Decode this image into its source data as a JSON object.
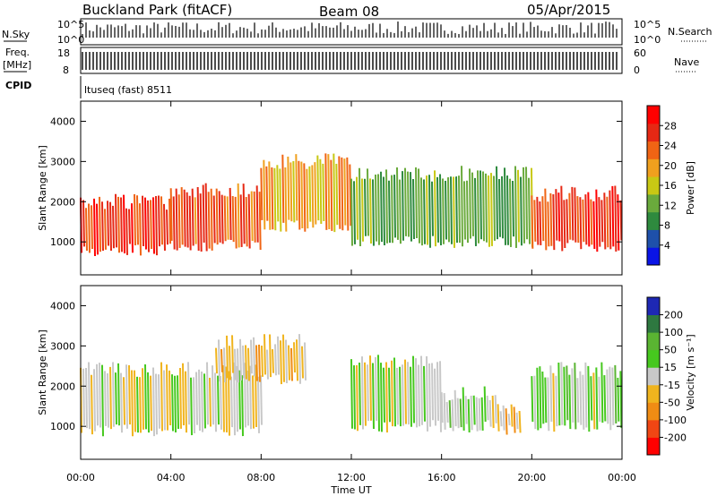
{
  "header": {
    "station": "Buckland Park (fitACF)",
    "beam": "Beam 08",
    "date": "05/Apr/2015"
  },
  "status": {
    "nsky_label": "N.Sky",
    "nsearch_label": "N.Search",
    "noise_ticks": [
      "10^5",
      "10^0"
    ],
    "freq_label": "Freq.",
    "freq_unit": "[MHz]",
    "freq_ticks": [
      "18",
      "8"
    ],
    "nave_label": "Nave",
    "nave_ticks": [
      "60",
      "0"
    ],
    "cpid_label": "CPID",
    "cpid_text": "ltuseq (fast) 8511"
  },
  "colors": {
    "power_scale": [
      "#0a14e6",
      "#1e50aa",
      "#2e8a3e",
      "#6aaa3c",
      "#c8c814",
      "#f0a01e",
      "#f06414",
      "#e62814",
      "#ff0000"
    ],
    "velocity_scale": [
      "#1e28b4",
      "#2e7840",
      "#5ab432",
      "#46c81e",
      "#c8c8c8",
      "#f0b41e",
      "#f08c14",
      "#f04614",
      "#ff0000"
    ]
  },
  "chart_data": [
    {
      "type": "heatmap",
      "name": "power",
      "ylabel": "Slant Range [km]",
      "ylim": [
        180,
        4500
      ],
      "yticks": [
        "1000",
        "2000",
        "3000",
        "4000"
      ],
      "colorbar_label": "Power [dB]",
      "colorbar_ticks": [
        "4",
        "8",
        "12",
        "16",
        "20",
        "24",
        "28"
      ],
      "colorbar_range": [
        0,
        32
      ],
      "regions": [
        {
          "t_start": "00:00",
          "t_end": "04:00",
          "range_km": [
            800,
            2000
          ],
          "value_db": 26
        },
        {
          "t_start": "04:00",
          "t_end": "08:00",
          "range_km": [
            900,
            2300
          ],
          "value_db": 24
        },
        {
          "t_start": "08:00",
          "t_end": "12:00",
          "range_km": [
            1400,
            3000
          ],
          "value_db": 20
        },
        {
          "t_start": "12:00",
          "t_end": "20:00",
          "range_km": [
            1000,
            2700
          ],
          "value_db": 12
        },
        {
          "t_start": "20:00",
          "t_end": "24:00",
          "range_km": [
            900,
            2200
          ],
          "value_db": 26
        }
      ]
    },
    {
      "type": "heatmap",
      "name": "velocity",
      "xlabel": "Time UT",
      "ylabel": "Slant Range [km]",
      "ylim": [
        180,
        4500
      ],
      "xticks": [
        "00:00",
        "04:00",
        "08:00",
        "12:00",
        "16:00",
        "20:00",
        "00:00"
      ],
      "yticks": [
        "1000",
        "2000",
        "3000",
        "4000"
      ],
      "colorbar_label": "Velocity [m s⁻¹]",
      "colorbar_ticks": [
        "200",
        "100",
        "50",
        "15",
        "-15",
        "-50",
        "-100",
        "-200"
      ],
      "regions": [
        {
          "t_start": "00:00",
          "t_end": "08:00",
          "range_km": [
            900,
            2400
          ],
          "value_ms": 0
        },
        {
          "t_start": "06:00",
          "t_end": "10:00",
          "range_km": [
            2200,
            3100
          ],
          "value_ms": -40
        },
        {
          "t_start": "12:00",
          "t_end": "16:00",
          "range_km": [
            1000,
            2600
          ],
          "value_ms": 0
        },
        {
          "t_start": "16:00",
          "t_end": "18:30",
          "range_km": [
            1000,
            1800
          ],
          "value_ms": 30
        },
        {
          "t_start": "18:30",
          "t_end": "19:30",
          "range_km": [
            900,
            1500
          ],
          "value_ms": -40
        },
        {
          "t_start": "20:00",
          "t_end": "24:00",
          "range_km": [
            1000,
            2400
          ],
          "value_ms": 30
        }
      ]
    }
  ]
}
